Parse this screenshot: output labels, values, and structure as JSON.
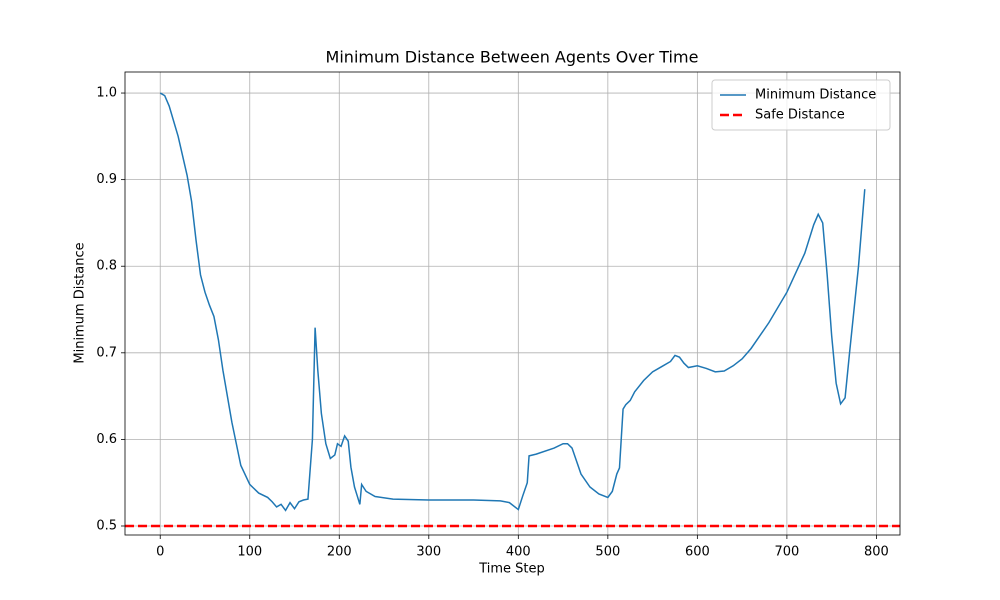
{
  "chart_data": {
    "type": "line",
    "title": "Minimum Distance Between Agents Over Time",
    "xlabel": "Time Step",
    "ylabel": "Minimum Distance",
    "x": [
      0,
      5,
      10,
      20,
      30,
      35,
      40,
      45,
      50,
      55,
      60,
      65,
      70,
      80,
      90,
      100,
      110,
      120,
      125,
      130,
      135,
      140,
      145,
      150,
      155,
      160,
      165,
      170,
      173,
      176,
      180,
      185,
      190,
      195,
      198,
      202,
      206,
      210,
      213,
      217,
      220,
      223,
      225,
      230,
      240,
      260,
      300,
      350,
      380,
      390,
      400,
      405,
      410,
      412,
      420,
      440,
      450,
      455,
      460,
      470,
      480,
      490,
      500,
      505,
      510,
      513,
      517,
      520,
      525,
      530,
      540,
      550,
      560,
      570,
      575,
      580,
      585,
      590,
      600,
      610,
      620,
      630,
      640,
      650,
      660,
      680,
      700,
      720,
      730,
      735,
      740,
      745,
      750,
      755,
      760,
      765,
      770,
      780,
      787
    ],
    "series": [
      {
        "name": "Minimum Distance",
        "color": "#1f77b4",
        "values": [
          1.0,
          0.997,
          0.985,
          0.95,
          0.905,
          0.875,
          0.83,
          0.79,
          0.77,
          0.755,
          0.742,
          0.715,
          0.68,
          0.62,
          0.57,
          0.548,
          0.538,
          0.533,
          0.528,
          0.522,
          0.525,
          0.518,
          0.527,
          0.52,
          0.528,
          0.53,
          0.531,
          0.6,
          0.729,
          0.68,
          0.63,
          0.595,
          0.578,
          0.582,
          0.595,
          0.592,
          0.604,
          0.598,
          0.568,
          0.545,
          0.535,
          0.525,
          0.548,
          0.54,
          0.534,
          0.531,
          0.53,
          0.53,
          0.529,
          0.527,
          0.519,
          0.535,
          0.55,
          0.581,
          0.583,
          0.59,
          0.595,
          0.595,
          0.59,
          0.56,
          0.545,
          0.537,
          0.533,
          0.54,
          0.56,
          0.567,
          0.635,
          0.64,
          0.645,
          0.655,
          0.668,
          0.678,
          0.684,
          0.69,
          0.697,
          0.695,
          0.688,
          0.683,
          0.685,
          0.682,
          0.678,
          0.679,
          0.685,
          0.693,
          0.705,
          0.735,
          0.77,
          0.815,
          0.848,
          0.86,
          0.85,
          0.79,
          0.72,
          0.665,
          0.641,
          0.648,
          0.7,
          0.8,
          0.889
        ]
      }
    ],
    "reference_lines": [
      {
        "name": "Safe Distance",
        "value": 0.5,
        "color": "#ff0000",
        "style": "dashed"
      }
    ],
    "xlim": [
      -39.35,
      826.35
    ],
    "ylim": [
      0.4896,
      1.0243
    ],
    "xticks": [
      0,
      100,
      200,
      300,
      400,
      500,
      600,
      700,
      800
    ],
    "yticks": [
      0.5,
      0.6,
      0.7,
      0.8,
      0.9,
      {
        "value": 1.0,
        "label": "1.0"
      }
    ],
    "grid": true,
    "legend": "upper-right"
  }
}
